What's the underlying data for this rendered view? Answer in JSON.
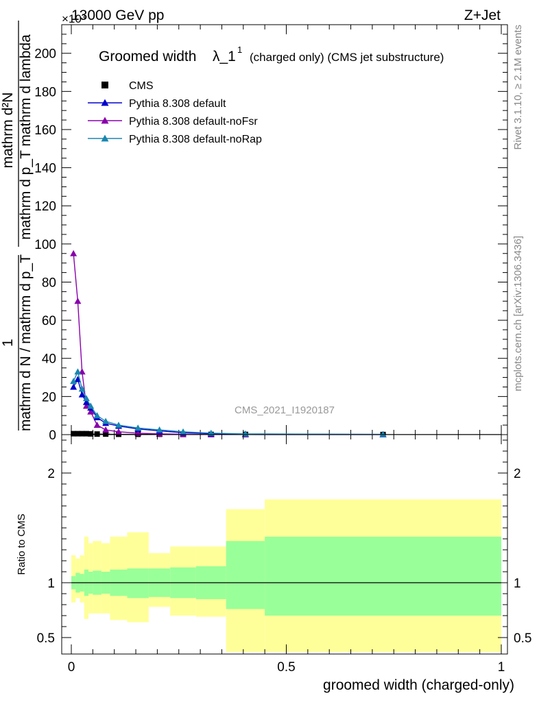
{
  "header": {
    "energy": "13000 GeV pp",
    "process": "Z+Jet",
    "multiplier": "×10³"
  },
  "side_text": {
    "rivet": "Rivet 3.1.10, ≥ 2.1M events",
    "mcplots": "mcplots.cern.ch [arXiv:1306.3436]"
  },
  "analysis_id": "CMS_2021_I1920187",
  "chart_data": [
    {
      "type": "line",
      "title_main": "Groomed width",
      "title_lambda": "λ_1",
      "title_sup": "1",
      "title_rest": "(charged only) (CMS jet substructure)",
      "ylabel_numerator": "mathrm d²N",
      "ylabel_denominator": "mathrm d p_T mathrm d lambda",
      "ylabel_prefactor_num": "1",
      "ylabel_prefactor_den": "mathrm d N / mathrm d p_T",
      "xlim": [
        0,
        1
      ],
      "ylim": [
        0,
        215
      ],
      "yticks": [
        0,
        20,
        40,
        60,
        80,
        100,
        120,
        140,
        160,
        180,
        200
      ],
      "legend_position": "top-left",
      "colors": {
        "CMS": "#000000",
        "Pythia 8.308 default": "#0000cc",
        "Pythia 8.308 default-noFsr": "#8800aa",
        "Pythia 8.308 default-noRap": "#1a86b0"
      },
      "bin_edges": [
        0,
        0.01,
        0.02,
        0.03,
        0.04,
        0.05,
        0.07,
        0.09,
        0.13,
        0.18,
        0.23,
        0.29,
        0.36,
        0.45,
        1.0
      ],
      "series": [
        {
          "name": "CMS",
          "marker": "square",
          "x": [
            0.005,
            0.015,
            0.025,
            0.035,
            0.045,
            0.06,
            0.08,
            0.11,
            0.155,
            0.205,
            0.26,
            0.325,
            0.405,
            0.725
          ],
          "values": [
            0.5,
            0.5,
            0.5,
            0.5,
            0.4,
            0.3,
            0.3,
            0.2,
            0.2,
            0.2,
            0.1,
            0.1,
            0.1,
            0.05
          ]
        },
        {
          "name": "Pythia 8.308 default",
          "marker": "triangle",
          "x": [
            0.005,
            0.015,
            0.025,
            0.035,
            0.045,
            0.06,
            0.08,
            0.11,
            0.155,
            0.205,
            0.26,
            0.325,
            0.405,
            0.725
          ],
          "values": [
            25,
            29,
            21,
            17,
            14,
            9,
            6,
            4.5,
            3,
            2,
            1,
            0.5,
            0.3,
            0.1
          ]
        },
        {
          "name": "Pythia 8.308 default-noFsr",
          "marker": "triangle",
          "x": [
            0.005,
            0.015,
            0.025,
            0.035,
            0.045,
            0.06,
            0.08,
            0.11,
            0.155,
            0.205,
            0.26,
            0.325,
            0.405,
            0.725
          ],
          "values": [
            95,
            70,
            33,
            15,
            12,
            5,
            2.5,
            1.5,
            0.8,
            0.4,
            0.2,
            0.1,
            0.05,
            0.02
          ]
        },
        {
          "name": "Pythia 8.308 default-noRap",
          "marker": "triangle",
          "x": [
            0.005,
            0.015,
            0.025,
            0.035,
            0.045,
            0.06,
            0.08,
            0.11,
            0.155,
            0.205,
            0.26,
            0.325,
            0.405,
            0.725
          ],
          "values": [
            28,
            33,
            24,
            19,
            15,
            10,
            7,
            5,
            3.5,
            2.5,
            1.5,
            0.8,
            0.4,
            0.15
          ]
        }
      ]
    },
    {
      "type": "area",
      "ylabel": "Ratio to CMS",
      "xlabel": "groomed width (charged-only)",
      "xlim": [
        0,
        1
      ],
      "ylim": [
        0.35,
        2.35
      ],
      "yticks": [
        0.5,
        1,
        2
      ],
      "xticks": [
        0,
        0.5,
        1
      ],
      "reference_line": 1,
      "colors": {
        "stat": "#99ff99",
        "total": "#ffff99",
        "line": "#000000"
      },
      "bin_edges": [
        0,
        0.01,
        0.02,
        0.03,
        0.04,
        0.05,
        0.07,
        0.09,
        0.13,
        0.18,
        0.23,
        0.29,
        0.36,
        0.45,
        1.0
      ],
      "stat_band": {
        "up": [
          1.06,
          1.09,
          1.08,
          1.12,
          1.1,
          1.11,
          1.1,
          1.12,
          1.13,
          1.13,
          1.14,
          1.15,
          1.38,
          1.42
        ],
        "down": [
          0.94,
          0.91,
          0.92,
          0.88,
          0.9,
          0.89,
          0.9,
          0.88,
          0.86,
          0.87,
          0.86,
          0.85,
          0.76,
          0.7
        ]
      },
      "total_band": {
        "up": [
          1.25,
          1.22,
          1.25,
          1.42,
          1.36,
          1.38,
          1.36,
          1.42,
          1.46,
          1.27,
          1.33,
          1.33,
          1.67,
          1.76
        ],
        "down": [
          0.82,
          0.86,
          0.82,
          0.67,
          0.72,
          0.72,
          0.72,
          0.66,
          0.64,
          0.78,
          0.7,
          0.69,
          0.37,
          0.37
        ]
      }
    }
  ]
}
